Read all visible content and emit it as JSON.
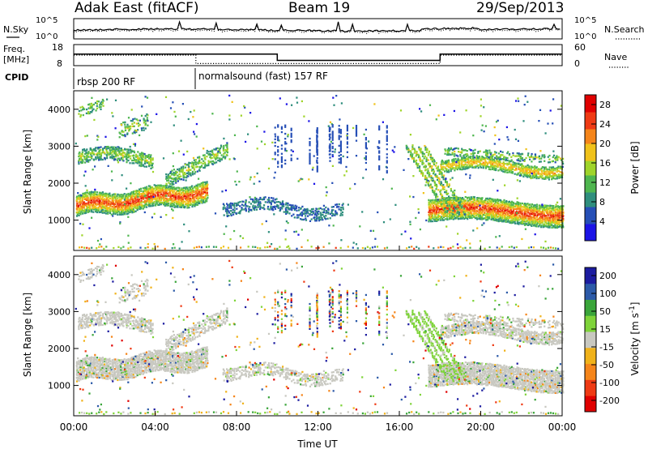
{
  "header": {
    "title": "Adak East (fitACF)",
    "beam": "Beam 19",
    "date": "29/Sep/2013"
  },
  "top_panel": {
    "left_label": "N.Sky",
    "right_label": "N.Search",
    "left_ticks": [
      "10^5",
      "10^0"
    ],
    "right_ticks": [
      "10^5",
      "10^0"
    ]
  },
  "freq_panel": {
    "left_label_1": "Freq.",
    "left_label_2": "[MHz]",
    "right_label": "Nave",
    "left_ticks": [
      "18",
      "8"
    ],
    "right_ticks": [
      "60",
      "0"
    ]
  },
  "cpid_panel": {
    "label": "CPID",
    "modes": [
      "rbsp 200 RF",
      "normalsound (fast) 157 RF"
    ]
  },
  "colors": {
    "power_scale": [
      "#1c14e6",
      "#264fb6",
      "#2f8e7d",
      "#4fb64f",
      "#9fd42a",
      "#f0c21a",
      "#f5851a",
      "#ef3a14",
      "#e00000"
    ],
    "velocity_scale": [
      "#e00000",
      "#ef3a14",
      "#f5851a",
      "#f0b21a",
      "#c8c8c0",
      "#7fd43a",
      "#3aa53a",
      "#2c5aa8",
      "#1c1ca0"
    ]
  },
  "chart_data": [
    {
      "type": "line",
      "title": "",
      "series": [
        {
          "name": "N.Sky",
          "style": "solid"
        },
        {
          "name": "N.Search",
          "style": "dotted"
        }
      ],
      "x": [
        "00:00",
        "04:00",
        "08:00",
        "12:00",
        "16:00",
        "20:00",
        "00:00"
      ],
      "ylim_left": [
        "10^0",
        "10^5"
      ],
      "ylim_right": [
        "10^0",
        "10^5"
      ]
    },
    {
      "type": "line",
      "series": [
        {
          "name": "Freq.",
          "style": "solid",
          "points": [
            [
              0,
              13.5
            ],
            [
              10,
              13.5
            ],
            [
              10,
              10.5
            ],
            [
              18,
              10.5
            ],
            [
              18,
              13.5
            ],
            [
              24,
              13.5
            ]
          ]
        },
        {
          "name": "Nave",
          "style": "dotted",
          "points": [
            [
              0,
              13
            ],
            [
              6,
              13
            ],
            [
              6,
              9
            ],
            [
              18,
              9
            ],
            [
              18,
              13
            ],
            [
              24,
              13
            ]
          ]
        }
      ],
      "ylim_left": [
        8,
        18
      ],
      "ylim_right": [
        0,
        60
      ]
    },
    {
      "type": "heatmap",
      "name": "power",
      "xlabel": "Time UT",
      "ylabel": "Slant Range [km]",
      "x_ticks": [
        "00:00",
        "04:00",
        "08:00",
        "12:00",
        "16:00",
        "20:00",
        "00:00"
      ],
      "y_ticks": [
        1000,
        2000,
        3000,
        4000
      ],
      "ylim": [
        180,
        4500
      ],
      "colorbar": {
        "label": "Power [dB]",
        "ticks": [
          4,
          8,
          12,
          16,
          20,
          24,
          28
        ],
        "range": [
          0,
          30
        ]
      },
      "features": [
        {
          "t": [
            0.5,
            6.5
          ],
          "r": [
            1100,
            1700
          ],
          "value_db": 26
        },
        {
          "t": [
            0.5,
            6.5
          ],
          "r": [
            2500,
            2900
          ],
          "value_db": 14
        },
        {
          "t": [
            17.5,
            24
          ],
          "r": [
            900,
            1600
          ],
          "value_db": 26
        },
        {
          "t": [
            18,
            24
          ],
          "r": [
            2300,
            2600
          ],
          "value_db": 20
        },
        {
          "t": [
            7.5,
            13
          ],
          "r": [
            900,
            1600
          ],
          "value_db": 6
        }
      ]
    },
    {
      "type": "heatmap",
      "name": "velocity",
      "xlabel": "Time UT",
      "ylabel": "Slant Range [km]",
      "x_ticks": [
        "00:00",
        "04:00",
        "08:00",
        "12:00",
        "16:00",
        "20:00",
        "00:00"
      ],
      "y_ticks": [
        1000,
        2000,
        3000,
        4000
      ],
      "ylim": [
        180,
        4500
      ],
      "colorbar": {
        "label": "Velocity [m s^-1]",
        "ticks": [
          "200",
          "100",
          "50",
          "15",
          "-15",
          "-50",
          "-100",
          "-200"
        ]
      },
      "features": [
        {
          "t": [
            0.5,
            6.5
          ],
          "r": [
            1100,
            1700
          ],
          "value": 0
        },
        {
          "t": [
            17.5,
            24
          ],
          "r": [
            900,
            1600
          ],
          "value": 0
        },
        {
          "t": [
            16.5,
            18
          ],
          "r": [
            1300,
            2300
          ],
          "value": 60
        }
      ]
    }
  ]
}
